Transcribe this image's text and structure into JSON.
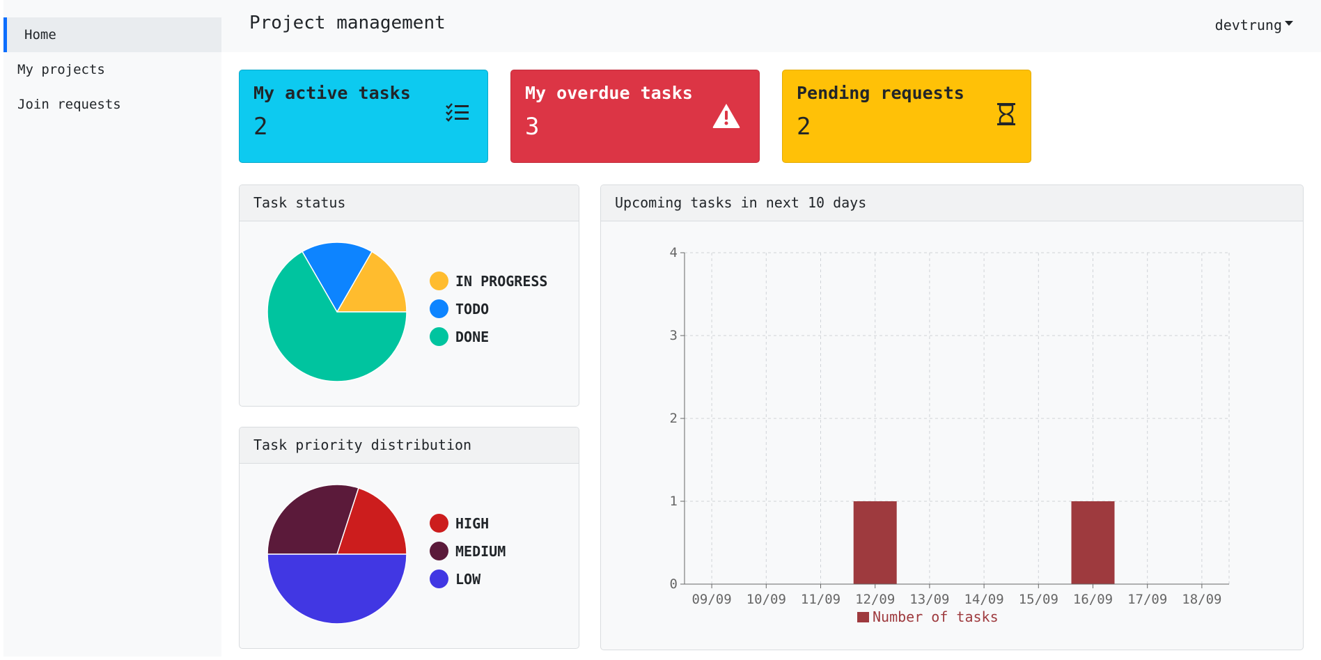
{
  "sidebar": {
    "items": [
      {
        "label": "Home",
        "active": true
      },
      {
        "label": "My projects",
        "active": false
      },
      {
        "label": "Join requests",
        "active": false
      }
    ]
  },
  "header": {
    "title": "Project management",
    "user": "devtrung"
  },
  "stats": {
    "active": {
      "title": "My active tasks",
      "value": "2",
      "color": "#0dcaf0",
      "icon": "checklist-icon"
    },
    "overdue": {
      "title": "My overdue tasks",
      "value": "3",
      "color": "#dc3545",
      "icon": "warning-triangle-icon"
    },
    "pending": {
      "title": "Pending requests",
      "value": "2",
      "color": "#ffc107",
      "icon": "hourglass-icon"
    }
  },
  "panels": {
    "status_title": "Task status",
    "priority_title": "Task priority distribution",
    "upcoming_title": "Upcoming tasks in next 10 days"
  },
  "chart_data": [
    {
      "type": "pie",
      "title": "Task status",
      "labels": [
        "IN PROGRESS",
        "TODO",
        "DONE"
      ],
      "values": [
        1,
        1,
        4
      ],
      "colors": [
        "#ffbc2e",
        "#0d84ff",
        "#00c49f"
      ],
      "legend": "right"
    },
    {
      "type": "pie",
      "title": "Task priority distribution",
      "labels": [
        "HIGH",
        "MEDIUM",
        "LOW"
      ],
      "values": [
        1,
        1.5,
        2.5
      ],
      "colors": [
        "#cc1d1d",
        "#5b1a3a",
        "#4137e3"
      ],
      "legend": "right"
    },
    {
      "type": "bar",
      "title": "Upcoming tasks in next 10 days",
      "categories": [
        "09/09",
        "10/09",
        "11/09",
        "12/09",
        "13/09",
        "14/09",
        "15/09",
        "16/09",
        "17/09",
        "18/09"
      ],
      "series": [
        {
          "name": "Number of tasks",
          "values": [
            0,
            0,
            0,
            1,
            0,
            0,
            0,
            1,
            0,
            0
          ],
          "color": "#9e3a3e"
        }
      ],
      "ylim": [
        0,
        4
      ],
      "yticks": [
        "0",
        "1",
        "2",
        "3",
        "4"
      ],
      "grid": true,
      "legend": "bottom-center"
    }
  ]
}
